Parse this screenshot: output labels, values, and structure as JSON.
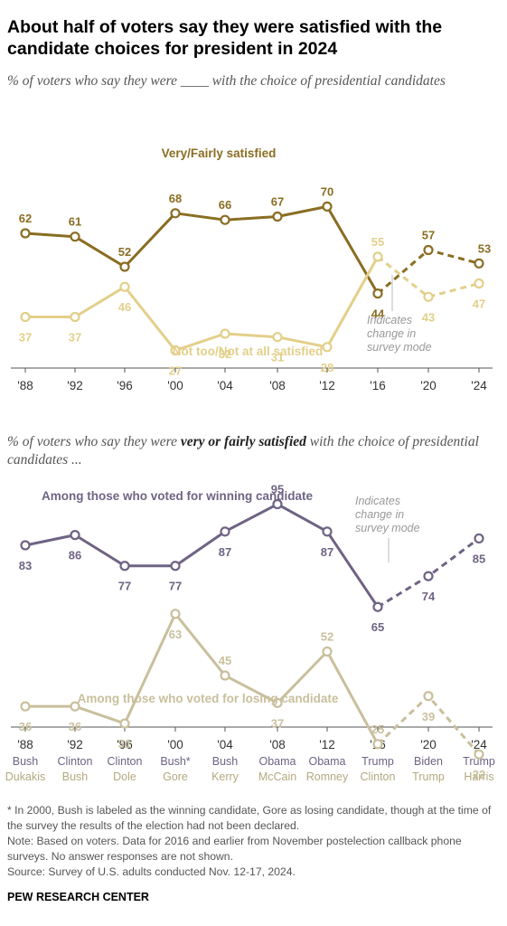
{
  "title": "About half of voters say they were satisfied with the candidate choices for president in 2024",
  "subtitle1": "% of voters who say they were ____ with the choice of presidential candidates",
  "subtitle2": {
    "before": "% of voters who say they were ",
    "emphasis": "very or fairly satisfied",
    "after": " with the choice of presidential candidates ..."
  },
  "colors": {
    "satisfied": "#8a6d22",
    "not_satisfied": "#e3cf8a",
    "winning": "#6f6384",
    "losing": "#c9bf9c",
    "axis": "#555555",
    "note": "#999999"
  },
  "chart_data": [
    {
      "type": "line",
      "x": [
        "'88",
        "'92",
        "'96",
        "'00",
        "'04",
        "'08",
        "'12",
        "'16",
        "'20",
        "'24"
      ],
      "ylim": [
        20,
        75
      ],
      "series": [
        {
          "name": "Very/Fairly satisfied",
          "values": [
            62,
            61,
            52,
            68,
            66,
            67,
            70,
            44,
            57,
            53
          ]
        },
        {
          "name": "Not too/Not at all satisfied",
          "values": [
            37,
            37,
            46,
            27,
            32,
            31,
            28,
            55,
            43,
            47
          ]
        }
      ],
      "dashed_from": "'16",
      "annotation": "Indicates change in survey mode"
    },
    {
      "type": "line",
      "x": [
        "'88",
        "'92",
        "'96",
        "'00",
        "'04",
        "'08",
        "'12",
        "'16",
        "'20",
        "'24"
      ],
      "ylim": [
        15,
        100
      ],
      "winners": [
        "Bush",
        "Clinton",
        "Clinton",
        "Bush*",
        "Bush",
        "Obama",
        "Obama",
        "Trump",
        "Biden",
        "Trump"
      ],
      "losers": [
        "Dukakis",
        "Bush",
        "Dole",
        "Gore",
        "Kerry",
        "McCain",
        "Romney",
        "Clinton",
        "Trump",
        "Harris"
      ],
      "series": [
        {
          "name": "Among those who voted for winning candidate",
          "values": [
            83,
            86,
            77,
            77,
            87,
            95,
            87,
            65,
            74,
            85
          ]
        },
        {
          "name": "Among those who voted for losing candidate",
          "values": [
            36,
            36,
            31,
            63,
            45,
            37,
            52,
            25,
            39,
            22
          ]
        }
      ],
      "dashed_from": "'16",
      "annotation": "Indicates change in survey mode"
    }
  ],
  "notes": [
    "* In 2000, Bush is labeled as the winning candidate, Gore as losing candidate, though at the time of the survey the results of the election had not been declared.",
    "Note: Based on voters. Data for 2016 and earlier from November postelection callback phone surveys. No answer responses are not shown.",
    "Source: Survey of U.S. adults conducted Nov. 12-17, 2024."
  ],
  "source_org": "PEW RESEARCH CENTER"
}
